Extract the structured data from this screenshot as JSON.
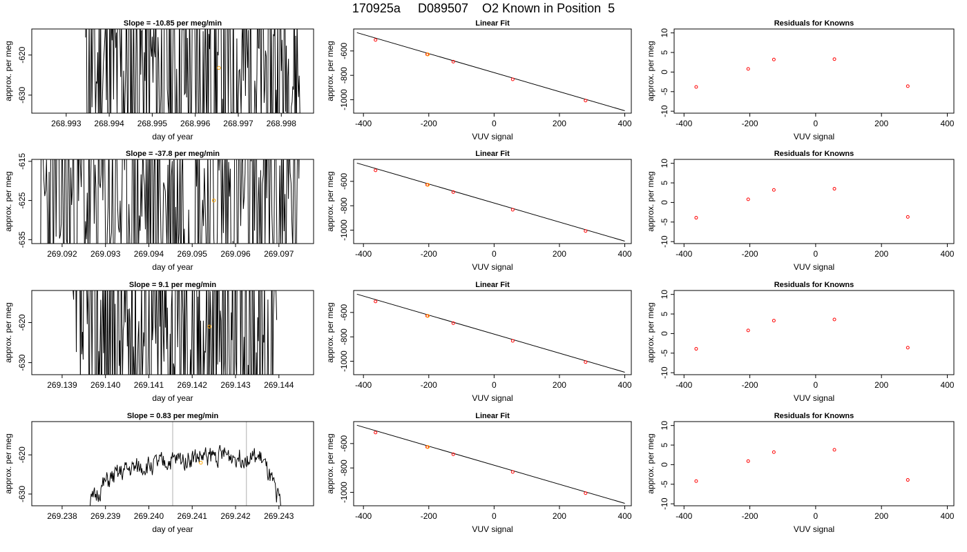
{
  "title": "170925a     D089507    O2 Known in Position  5",
  "colors": {
    "trace": "#000000",
    "marker_orange": "#ffa500",
    "known_red": "#ff0000",
    "vline": "#bebebe"
  },
  "rows": [
    {
      "timeseries": {
        "title": "Slope =  -10.85  per meg/min",
        "xlabel": "day of year",
        "ylabel": "approx. per meg",
        "xlim": [
          268.9922,
          268.99875
        ],
        "ylim": [
          -634.5,
          -613.5
        ],
        "xticks": [
          268.993,
          268.994,
          268.995,
          268.996,
          268.997,
          268.998
        ],
        "xtick_labels": [
          "268.993",
          "268.994",
          "268.995",
          "268.996",
          "268.997",
          "268.998"
        ],
        "yticks": [
          -620,
          -630
        ],
        "ytick_labels": [
          "-620",
          "-630"
        ],
        "trace": {
          "x_start": 268.99345,
          "x_end": 268.99845,
          "mean": -624.0,
          "spread": 28,
          "seed": 11
        },
        "vlines": [],
        "marker": {
          "x": 268.99655,
          "y": -623.2
        }
      },
      "fit": {
        "title": "Linear Fit",
        "xlabel": "VUV signal",
        "ylabel": "approx. per meg",
        "xlim": [
          -430,
          420
        ],
        "ylim": [
          -1110,
          -420
        ],
        "xticks": [
          -400,
          -200,
          0,
          200,
          400
        ],
        "xtick_labels": [
          "-400",
          "-200",
          "0",
          "200",
          "400"
        ],
        "yticks": [
          -600,
          -800,
          -1000
        ],
        "ytick_labels": [
          "-600",
          "-800",
          "-1000"
        ],
        "line": {
          "x": [
            -420,
            400
          ],
          "y": [
            -450,
            -1090
          ]
        },
        "points": [
          {
            "x": -363,
            "y": -510
          },
          {
            "x": -205,
            "y": -628
          },
          {
            "x": -125,
            "y": -688
          },
          {
            "x": 57,
            "y": -833
          },
          {
            "x": 280,
            "y": -1007
          }
        ],
        "orange_point": {
          "x": -203,
          "y": -628
        }
      },
      "residuals": {
        "title": "Residuals for Knowns",
        "xlabel": "VUV signal",
        "ylabel": "approx. per meg",
        "xlim": [
          -430,
          420
        ],
        "ylim": [
          -10.5,
          11
        ],
        "xticks": [
          -400,
          -200,
          0,
          200,
          400
        ],
        "xtick_labels": [
          "-400",
          "-200",
          "0",
          "200",
          "400"
        ],
        "yticks": [
          -10,
          -5,
          0,
          5,
          10
        ],
        "ytick_labels": [
          "-10",
          "-5",
          "0",
          "5",
          "10"
        ],
        "points": [
          {
            "x": -363,
            "y": -3.8
          },
          {
            "x": -205,
            "y": 0.8
          },
          {
            "x": -127,
            "y": 3.2
          },
          {
            "x": 57,
            "y": 3.3
          },
          {
            "x": 280,
            "y": -3.6
          }
        ]
      }
    },
    {
      "timeseries": {
        "title": "Slope =  -37.8  per meg/min",
        "xlabel": "day of year",
        "ylabel": "approx. per meg",
        "xlim": [
          269.0913,
          269.0978
        ],
        "ylim": [
          -636.0,
          -614.5
        ],
        "xticks": [
          269.092,
          269.093,
          269.094,
          269.095,
          269.096,
          269.097
        ],
        "xtick_labels": [
          "269.092",
          "269.093",
          "269.094",
          "269.095",
          "269.096",
          "269.097"
        ],
        "yticks": [
          -615,
          -625,
          -635
        ],
        "ytick_labels": [
          "-615",
          "-625",
          "-635"
        ],
        "trace": {
          "x_start": 269.0915,
          "x_end": 269.0975,
          "mean": -625.0,
          "spread": 30,
          "seed": 23
        },
        "vlines": [],
        "marker": {
          "x": 269.0955,
          "y": -625.0
        }
      },
      "fit": {
        "title": "Linear Fit",
        "xlabel": "VUV signal",
        "ylabel": "approx. per meg",
        "xlim": [
          -430,
          420
        ],
        "ylim": [
          -1110,
          -420
        ],
        "xticks": [
          -400,
          -200,
          0,
          200,
          400
        ],
        "xtick_labels": [
          "-400",
          "-200",
          "0",
          "200",
          "400"
        ],
        "yticks": [
          -600,
          -800,
          -1000
        ],
        "ytick_labels": [
          "-600",
          "-800",
          "-1000"
        ],
        "line": {
          "x": [
            -420,
            400
          ],
          "y": [
            -450,
            -1090
          ]
        },
        "points": [
          {
            "x": -363,
            "y": -510
          },
          {
            "x": -205,
            "y": -628
          },
          {
            "x": -125,
            "y": -688
          },
          {
            "x": 57,
            "y": -833
          },
          {
            "x": 280,
            "y": -1007
          }
        ],
        "orange_point": {
          "x": -203,
          "y": -628
        }
      },
      "residuals": {
        "title": "Residuals for Knowns",
        "xlabel": "VUV signal",
        "ylabel": "approx. per meg",
        "xlim": [
          -430,
          420
        ],
        "ylim": [
          -10.5,
          11
        ],
        "xticks": [
          -400,
          -200,
          0,
          200,
          400
        ],
        "xtick_labels": [
          "-400",
          "-200",
          "0",
          "200",
          "400"
        ],
        "yticks": [
          -10,
          -5,
          0,
          5,
          10
        ],
        "ytick_labels": [
          "-10",
          "-5",
          "0",
          "5",
          "10"
        ],
        "points": [
          {
            "x": -363,
            "y": -3.9
          },
          {
            "x": -205,
            "y": 0.8
          },
          {
            "x": -127,
            "y": 3.2
          },
          {
            "x": 57,
            "y": 3.5
          },
          {
            "x": 280,
            "y": -3.7
          }
        ]
      }
    },
    {
      "timeseries": {
        "title": "Slope =  9.1  per meg/min",
        "xlabel": "day of year",
        "ylabel": "approx. per meg",
        "xlim": [
          269.1383,
          269.1448
        ],
        "ylim": [
          -633.0,
          -612.0
        ],
        "xticks": [
          269.139,
          269.14,
          269.141,
          269.142,
          269.143,
          269.144
        ],
        "xtick_labels": [
          "269.139",
          "269.140",
          "269.141",
          "269.142",
          "269.143",
          "269.144"
        ],
        "yticks": [
          -620,
          -630
        ],
        "ytick_labels": [
          "-620",
          "-630"
        ],
        "trace": {
          "x_start": 269.13925,
          "x_end": 269.14395,
          "mean": -622.0,
          "spread": 28,
          "seed": 37
        },
        "vlines": [],
        "marker": {
          "x": 269.1424,
          "y": -621.0
        }
      },
      "fit": {
        "title": "Linear Fit",
        "xlabel": "VUV signal",
        "ylabel": "approx. per meg",
        "xlim": [
          -430,
          420
        ],
        "ylim": [
          -1110,
          -420
        ],
        "xticks": [
          -400,
          -200,
          0,
          200,
          400
        ],
        "xtick_labels": [
          "-400",
          "-200",
          "0",
          "200",
          "400"
        ],
        "yticks": [
          -600,
          -800,
          -1000
        ],
        "ytick_labels": [
          "-600",
          "-800",
          "-1000"
        ],
        "line": {
          "x": [
            -420,
            400
          ],
          "y": [
            -450,
            -1090
          ]
        },
        "points": [
          {
            "x": -363,
            "y": -510
          },
          {
            "x": -205,
            "y": -628
          },
          {
            "x": -125,
            "y": -688
          },
          {
            "x": 57,
            "y": -833
          },
          {
            "x": 280,
            "y": -1007
          }
        ],
        "orange_point": {
          "x": -203,
          "y": -628
        }
      },
      "residuals": {
        "title": "Residuals for Knowns",
        "xlabel": "VUV signal",
        "ylabel": "approx. per meg",
        "xlim": [
          -430,
          420
        ],
        "ylim": [
          -10.5,
          11
        ],
        "xticks": [
          -400,
          -200,
          0,
          200,
          400
        ],
        "xtick_labels": [
          "-400",
          "-200",
          "0",
          "200",
          "400"
        ],
        "yticks": [
          -10,
          -5,
          0,
          5,
          10
        ],
        "ytick_labels": [
          "-10",
          "-5",
          "0",
          "5",
          "10"
        ],
        "points": [
          {
            "x": -363,
            "y": -3.9
          },
          {
            "x": -205,
            "y": 0.8
          },
          {
            "x": -127,
            "y": 3.3
          },
          {
            "x": 57,
            "y": 3.6
          },
          {
            "x": 280,
            "y": -3.6
          }
        ]
      }
    },
    {
      "timeseries": {
        "title": "Slope =  0.83  per meg/min",
        "xlabel": "day of year",
        "ylabel": "approx. per meg",
        "xlim": [
          269.2373,
          269.2438
        ],
        "ylim": [
          -633.0,
          -611.5
        ],
        "xticks": [
          269.238,
          269.239,
          269.24,
          269.241,
          269.242,
          269.243
        ],
        "xtick_labels": [
          "269.238",
          "269.239",
          "269.240",
          "269.241",
          "269.242",
          "269.243"
        ],
        "yticks": [
          -620,
          -630
        ],
        "ytick_labels": [
          "-620",
          "-630"
        ],
        "trace": {
          "x_start": 269.23855,
          "x_end": 269.24305,
          "mean": -621.0,
          "spread": 3.5,
          "seed": 51,
          "smooth": true,
          "trend": [
            -634,
            -627,
            -624,
            -623,
            -622,
            -621,
            -620.5,
            -620,
            -620.5,
            -621,
            -633
          ]
        },
        "vlines": [
          269.24055,
          269.24225
        ],
        "marker": {
          "x": 269.2412,
          "y": -622.0
        }
      },
      "fit": {
        "title": "Linear Fit",
        "xlabel": "VUV signal",
        "ylabel": "approx. per meg",
        "xlim": [
          -430,
          420
        ],
        "ylim": [
          -1110,
          -420
        ],
        "xticks": [
          -400,
          -200,
          0,
          200,
          400
        ],
        "xtick_labels": [
          "-400",
          "-200",
          "0",
          "200",
          "400"
        ],
        "yticks": [
          -600,
          -800,
          -1000
        ],
        "ytick_labels": [
          "-600",
          "-800",
          "-1000"
        ],
        "line": {
          "x": [
            -420,
            400
          ],
          "y": [
            -450,
            -1090
          ]
        },
        "points": [
          {
            "x": -363,
            "y": -510
          },
          {
            "x": -205,
            "y": -628
          },
          {
            "x": -125,
            "y": -688
          },
          {
            "x": 57,
            "y": -833
          },
          {
            "x": 280,
            "y": -1007
          }
        ],
        "orange_point": {
          "x": -203,
          "y": -628
        }
      },
      "residuals": {
        "title": "Residuals for Knowns",
        "xlabel": "VUV signal",
        "ylabel": "approx. per meg",
        "xlim": [
          -430,
          420
        ],
        "ylim": [
          -10.5,
          11
        ],
        "xticks": [
          -400,
          -200,
          0,
          200,
          400
        ],
        "xtick_labels": [
          "-400",
          "-200",
          "0",
          "200",
          "400"
        ],
        "yticks": [
          -10,
          -5,
          0,
          5,
          10
        ],
        "ytick_labels": [
          "-10",
          "-5",
          "0",
          "5",
          "10"
        ],
        "points": [
          {
            "x": -363,
            "y": -4.2
          },
          {
            "x": -205,
            "y": 0.9
          },
          {
            "x": -127,
            "y": 3.2
          },
          {
            "x": 57,
            "y": 3.8
          },
          {
            "x": 280,
            "y": -3.9
          }
        ]
      }
    }
  ],
  "chart_data": [
    {
      "type": "line",
      "title": "Slope =  -10.85  per meg/min",
      "xlabel": "day of year",
      "ylabel": "approx. per meg",
      "xlim": [
        268.9922,
        268.99875
      ],
      "ylim": [
        -634.5,
        -613.5
      ],
      "note_series": "high-frequency trace spanning full y range 268.99345–268.99845",
      "grid": false
    },
    {
      "type": "scatter",
      "title": "Linear Fit",
      "xlabel": "VUV signal",
      "ylabel": "approx. per meg",
      "x": [
        -363,
        -205,
        -125,
        57,
        280
      ],
      "y": [
        -510,
        -628,
        -688,
        -833,
        -1007
      ],
      "xlim": [
        -430,
        420
      ],
      "ylim": [
        -1110,
        -420
      ],
      "grid": false
    },
    {
      "type": "scatter",
      "title": "Residuals for Knowns",
      "xlabel": "VUV signal",
      "ylabel": "approx. per meg",
      "x": [
        -363,
        -205,
        -127,
        57,
        280
      ],
      "y": [
        -3.8,
        0.8,
        3.2,
        3.3,
        -3.6
      ],
      "xlim": [
        -430,
        420
      ],
      "ylim": [
        -10.5,
        11
      ],
      "grid": false
    },
    {
      "type": "line",
      "title": "Slope =  -37.8  per meg/min",
      "xlabel": "day of year",
      "ylabel": "approx. per meg",
      "xlim": [
        269.0913,
        269.0978
      ],
      "ylim": [
        -636.0,
        -614.5
      ],
      "grid": false
    },
    {
      "type": "scatter",
      "title": "Linear Fit",
      "xlabel": "VUV signal",
      "ylabel": "approx. per meg",
      "x": [
        -363,
        -205,
        -125,
        57,
        280
      ],
      "y": [
        -510,
        -628,
        -688,
        -833,
        -1007
      ],
      "xlim": [
        -430,
        420
      ],
      "ylim": [
        -1110,
        -420
      ],
      "grid": false
    },
    {
      "type": "scatter",
      "title": "Residuals for Knowns",
      "xlabel": "VUV signal",
      "ylabel": "approx. per meg",
      "x": [
        -363,
        -205,
        -127,
        57,
        280
      ],
      "y": [
        -3.9,
        0.8,
        3.2,
        3.5,
        -3.7
      ],
      "xlim": [
        -430,
        420
      ],
      "ylim": [
        -10.5,
        11
      ],
      "grid": false
    },
    {
      "type": "line",
      "title": "Slope =  9.1  per meg/min",
      "xlabel": "day of year",
      "ylabel": "approx. per meg",
      "xlim": [
        269.1383,
        269.1448
      ],
      "ylim": [
        -633.0,
        -612.0
      ],
      "grid": false
    },
    {
      "type": "scatter",
      "title": "Linear Fit",
      "xlabel": "VUV signal",
      "ylabel": "approx. per meg",
      "x": [
        -363,
        -205,
        -125,
        57,
        280
      ],
      "y": [
        -510,
        -628,
        -688,
        -833,
        -1007
      ],
      "xlim": [
        -430,
        420
      ],
      "ylim": [
        -1110,
        -420
      ],
      "grid": false
    },
    {
      "type": "scatter",
      "title": "Residuals for Knowns",
      "xlabel": "VUV signal",
      "ylabel": "approx. per meg",
      "x": [
        -363,
        -205,
        -127,
        57,
        280
      ],
      "y": [
        -3.9,
        0.8,
        3.3,
        3.6,
        -3.6
      ],
      "xlim": [
        -430,
        420
      ],
      "ylim": [
        -10.5,
        11
      ],
      "grid": false
    },
    {
      "type": "line",
      "title": "Slope =  0.83  per meg/min",
      "xlabel": "day of year",
      "ylabel": "approx. per meg",
      "xlim": [
        269.2373,
        269.2438
      ],
      "ylim": [
        -633.0,
        -611.5
      ],
      "vlines": [
        269.24055,
        269.24225
      ],
      "grid": false
    },
    {
      "type": "scatter",
      "title": "Linear Fit",
      "xlabel": "VUV signal",
      "ylabel": "approx. per meg",
      "x": [
        -363,
        -205,
        -125,
        57,
        280
      ],
      "y": [
        -510,
        -628,
        -688,
        -833,
        -1007
      ],
      "xlim": [
        -430,
        420
      ],
      "ylim": [
        -1110,
        -420
      ],
      "grid": false
    },
    {
      "type": "scatter",
      "title": "Residuals for Knowns",
      "xlabel": "VUV signal",
      "ylabel": "approx. per meg",
      "x": [
        -363,
        -205,
        -127,
        57,
        280
      ],
      "y": [
        -4.2,
        0.9,
        3.2,
        3.8,
        -3.9
      ],
      "xlim": [
        -430,
        420
      ],
      "ylim": [
        -10.5,
        11
      ],
      "grid": false
    }
  ]
}
